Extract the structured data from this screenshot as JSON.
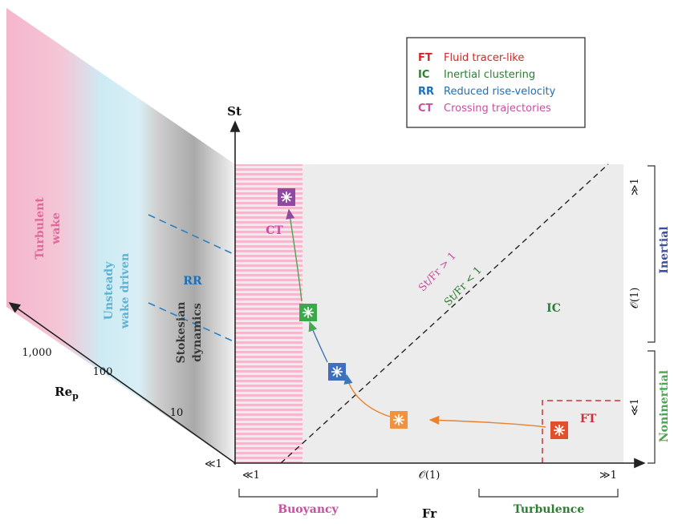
{
  "legend": [
    {
      "code": "FT",
      "label": "Fluid tracer-like",
      "color": "#cc2a2a"
    },
    {
      "code": "IC",
      "label": "Inertial clustering",
      "color": "#2e7d32"
    },
    {
      "code": "RR",
      "label": "Reduced rise-velocity",
      "color": "#1f6fb5"
    },
    {
      "code": "CT",
      "label": "Crossing trajectories",
      "color": "#c94fa0"
    }
  ],
  "axes": {
    "y_label": "St",
    "x_label": "Fr",
    "z_label_main": "Re",
    "z_label_sub": "p",
    "x_ticks": [
      "≪1",
      "𝒪(1)",
      "≫1"
    ],
    "z_ticks": [
      "≪1",
      "10",
      "100",
      "1,000"
    ],
    "y_brackets": [
      "≫1",
      "𝒪(1)",
      "≪1"
    ]
  },
  "side_labels": {
    "inertial": "Inertial",
    "noninertial": "Noninertial",
    "buoyancy": "Buoyancy",
    "turbulence": "Turbulence"
  },
  "wake_regimes": {
    "turbulent_line1": "Turbulent",
    "turbulent_line2": "wake",
    "unsteady_line1": "Unsteady",
    "unsteady_line2": "wake driven",
    "stokesian_line1": "Stokesian",
    "stokesian_line2": "dynamics"
  },
  "region_labels": {
    "ct": "CT",
    "rr": "RR",
    "ic": "IC",
    "ft": "FT",
    "ratio_above": "St/Fr > 1",
    "ratio_below": "St/Fr < 1"
  },
  "colors": {
    "ft": "#d9472b",
    "ft_marker": "#e0502c",
    "orange_marker": "#f2923e",
    "ic_marker": "#3aaa48",
    "rr_marker": "#3f6fbf",
    "ct_marker": "#8e4a9e",
    "turbulent_wake": "#f4b8cf",
    "unsteady_wake": "#c9ecf3",
    "stokesian": "#a8a8a8",
    "panel": "#ececec",
    "buoyancy_stripe": "#f7b7cf"
  }
}
